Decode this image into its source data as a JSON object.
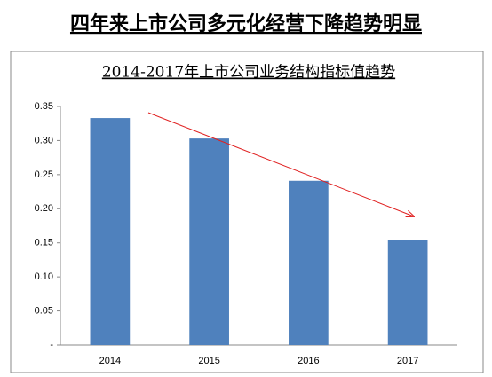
{
  "page_title": "四年来上市公司多元化经营下降趋势明显",
  "chart_data": {
    "type": "bar",
    "title": "2014-2017年上市公司业务结构指标值趋势",
    "categories": [
      "2014",
      "2015",
      "2016",
      "2017"
    ],
    "values": [
      0.333,
      0.303,
      0.241,
      0.154
    ],
    "color": "#4f81bd",
    "ylim": [
      0,
      0.35
    ],
    "yticks": [
      {
        "value": 0,
        "label": "-"
      },
      0.05,
      {
        "value": 0.1,
        "label": "0.10"
      },
      0.15,
      {
        "value": 0.2,
        "label": "0.20"
      },
      0.25,
      {
        "value": 0.3,
        "label": "0.30"
      },
      0.35
    ],
    "grid": false
  }
}
